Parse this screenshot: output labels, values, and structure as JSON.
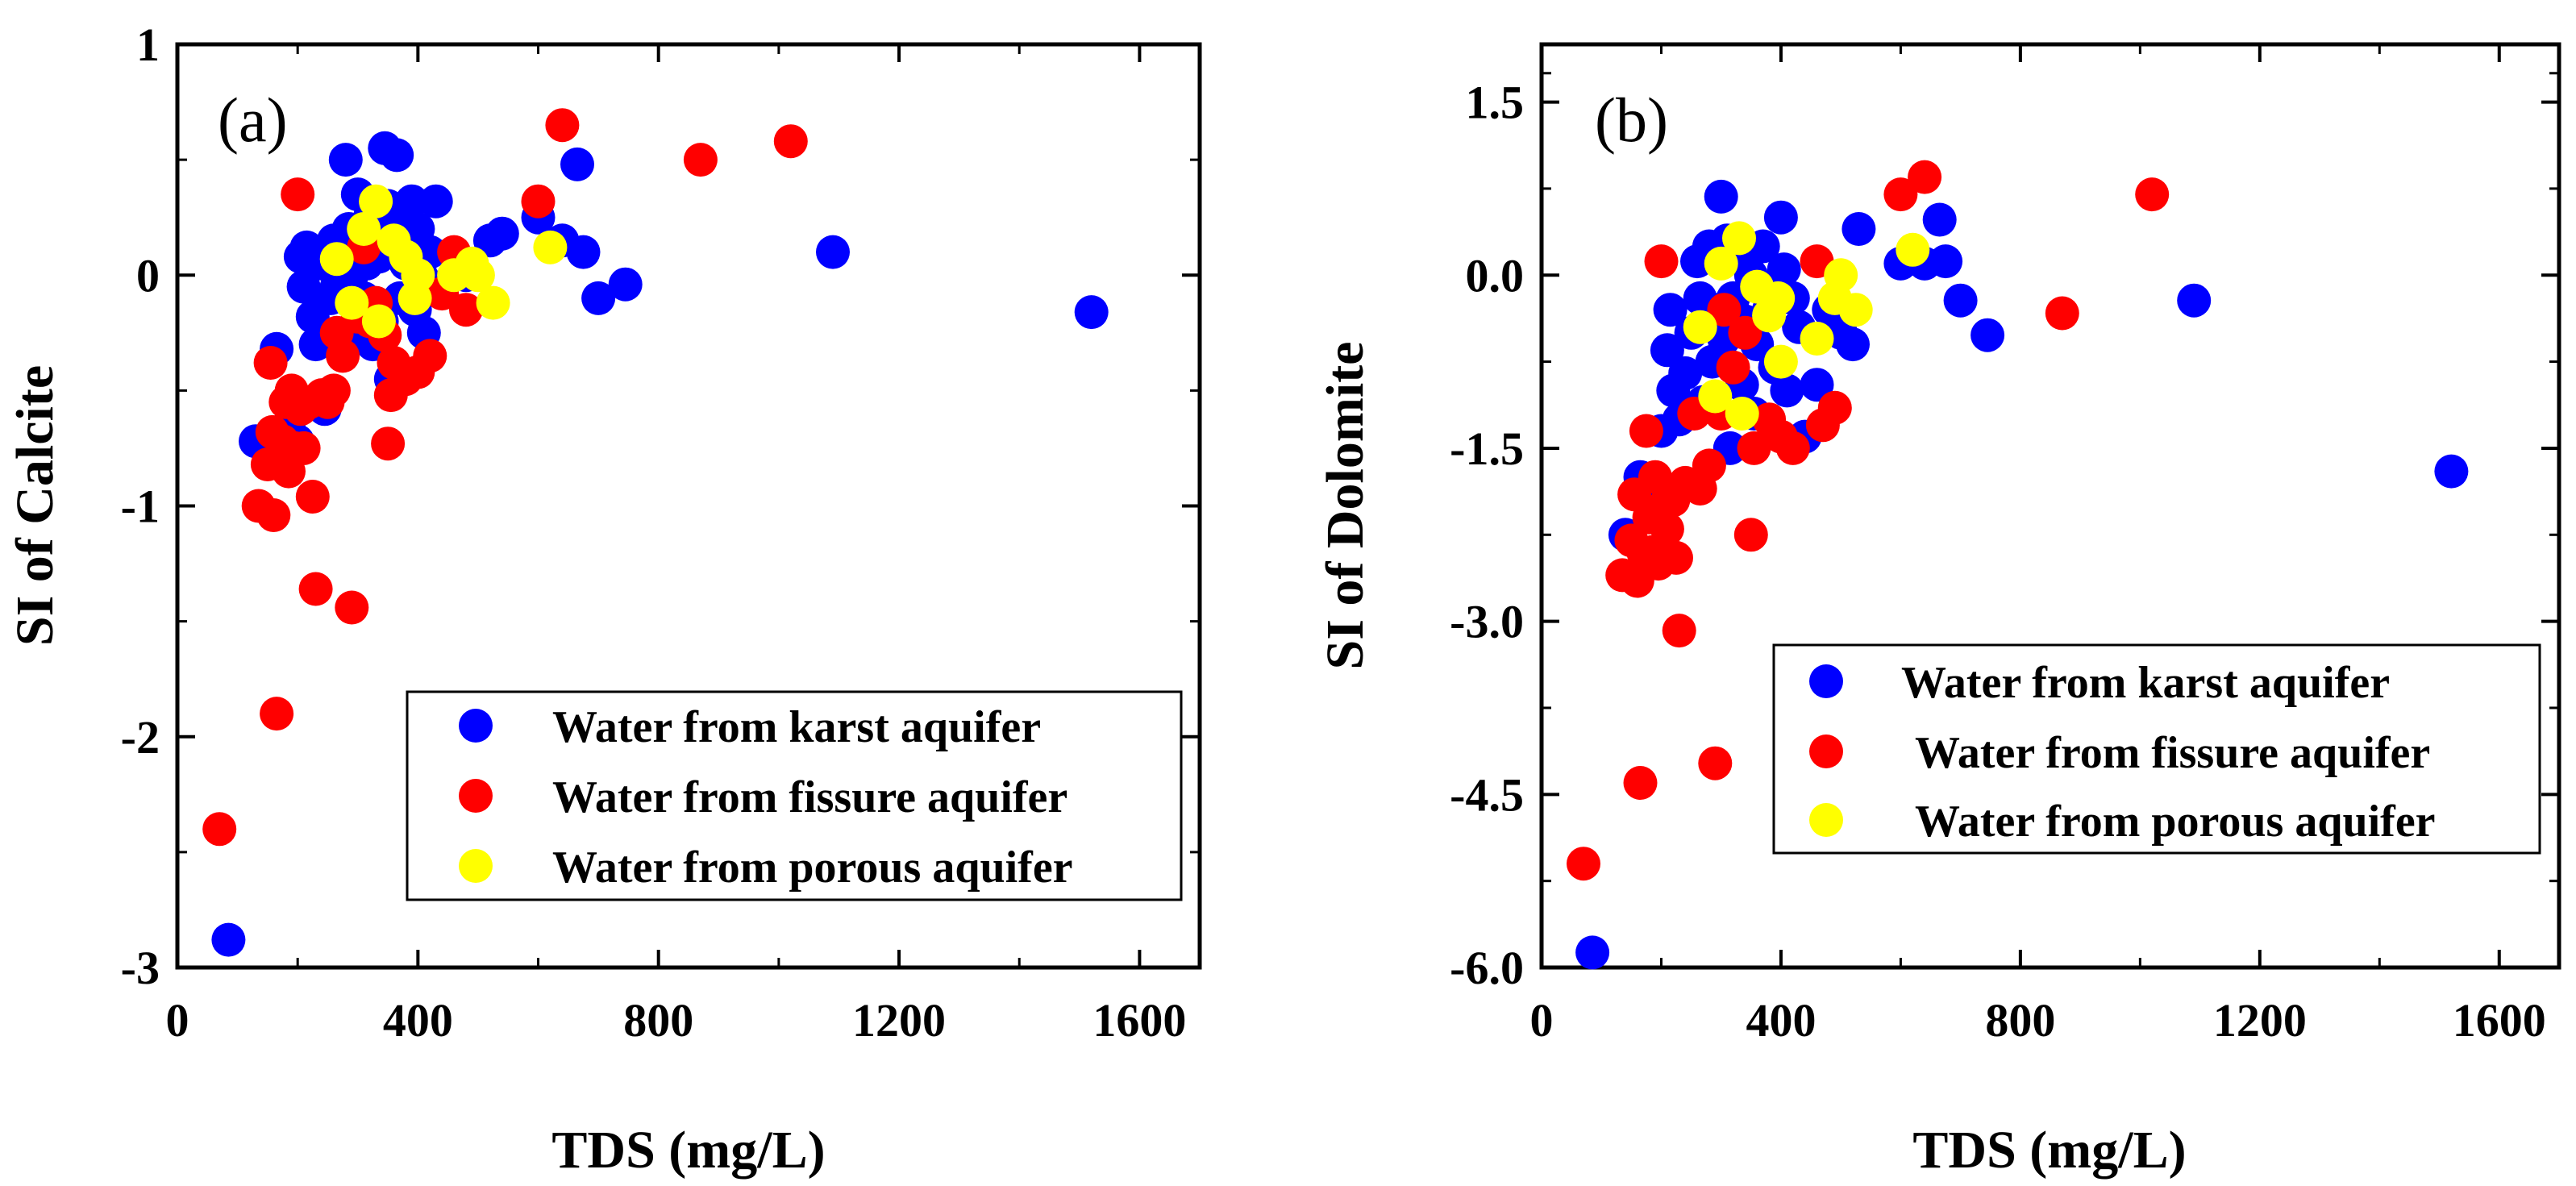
{
  "colors": {
    "karst": "#0000ff",
    "fissure": "#ff0000",
    "porous": "#ffff00",
    "axis": "#000000"
  },
  "chart_data": [
    {
      "id": "a",
      "type": "scatter",
      "panel_label": "(a)",
      "xlabel": "TDS (mg/L)",
      "ylabel": "SI of Calcite",
      "xlim": [
        0,
        1700
      ],
      "ylim": [
        -3,
        1
      ],
      "xticks": [
        0,
        400,
        800,
        1200,
        1600
      ],
      "xtick_labels": [
        "0",
        "400",
        "800",
        "1200",
        "1600"
      ],
      "yticks": [
        1,
        0,
        -1,
        -2,
        -3
      ],
      "ytick_labels": [
        "1",
        "0",
        "-1",
        "-2",
        "-3"
      ],
      "legend": [
        "Water from karst aquifer",
        "Water from fissure aquifer",
        "Water from porous aquifer"
      ],
      "series": [
        {
          "name": "Water from karst aquifer",
          "color_key": "karst",
          "points": [
            [
              85,
              -2.88
            ],
            [
              130,
              -0.72
            ],
            [
              165,
              -0.32
            ],
            [
              185,
              -0.65
            ],
            [
              200,
              -0.72
            ],
            [
              205,
              0.08
            ],
            [
              210,
              -0.05
            ],
            [
              215,
              0.12
            ],
            [
              225,
              -0.18
            ],
            [
              230,
              -0.3
            ],
            [
              240,
              0.05
            ],
            [
              245,
              -0.58
            ],
            [
              255,
              -0.1
            ],
            [
              260,
              0.15
            ],
            [
              265,
              -0.05
            ],
            [
              280,
              0.5
            ],
            [
              285,
              0.2
            ],
            [
              290,
              0.0
            ],
            [
              295,
              -0.25
            ],
            [
              300,
              0.35
            ],
            [
              305,
              0.1
            ],
            [
              310,
              -0.1
            ],
            [
              315,
              0.05
            ],
            [
              320,
              0.25
            ],
            [
              325,
              -0.3
            ],
            [
              330,
              0.18
            ],
            [
              335,
              0.08
            ],
            [
              340,
              -0.2
            ],
            [
              345,
              0.55
            ],
            [
              350,
              0.3
            ],
            [
              355,
              -0.45
            ],
            [
              360,
              0.12
            ],
            [
              365,
              0.52
            ],
            [
              370,
              -0.1
            ],
            [
              375,
              0.22
            ],
            [
              380,
              0.05
            ],
            [
              390,
              0.32
            ],
            [
              395,
              -0.15
            ],
            [
              400,
              0.2
            ],
            [
              405,
              0.0
            ],
            [
              410,
              -0.25
            ],
            [
              420,
              0.1
            ],
            [
              430,
              0.32
            ],
            [
              440,
              -0.05
            ],
            [
              460,
              0.08
            ],
            [
              480,
              0.0
            ],
            [
              520,
              0.15
            ],
            [
              540,
              0.18
            ],
            [
              600,
              0.25
            ],
            [
              640,
              0.15
            ],
            [
              665,
              0.48
            ],
            [
              675,
              0.1
            ],
            [
              700,
              -0.1
            ],
            [
              745,
              -0.04
            ],
            [
              1090,
              0.1
            ],
            [
              1520,
              -0.16
            ]
          ]
        },
        {
          "name": "Water from fissure aquifer",
          "color_key": "fissure",
          "points": [
            [
              70,
              -2.4
            ],
            [
              135,
              -1.0
            ],
            [
              150,
              -0.82
            ],
            [
              155,
              -0.38
            ],
            [
              158,
              -0.68
            ],
            [
              160,
              -1.04
            ],
            [
              165,
              -1.9
            ],
            [
              175,
              -0.72
            ],
            [
              180,
              -0.55
            ],
            [
              185,
              -0.85
            ],
            [
              190,
              -0.5
            ],
            [
              195,
              -0.75
            ],
            [
              200,
              0.35
            ],
            [
              205,
              -0.58
            ],
            [
              210,
              -0.75
            ],
            [
              220,
              -0.55
            ],
            [
              225,
              -0.96
            ],
            [
              230,
              -1.36
            ],
            [
              240,
              -0.52
            ],
            [
              250,
              -0.55
            ],
            [
              260,
              -0.5
            ],
            [
              265,
              -0.25
            ],
            [
              275,
              -0.35
            ],
            [
              290,
              -1.44
            ],
            [
              300,
              -0.18
            ],
            [
              310,
              0.12
            ],
            [
              320,
              -0.2
            ],
            [
              330,
              -0.12
            ],
            [
              345,
              -0.26
            ],
            [
              350,
              -0.73
            ],
            [
              355,
              -0.52
            ],
            [
              360,
              -0.38
            ],
            [
              380,
              -0.45
            ],
            [
              400,
              -0.42
            ],
            [
              420,
              -0.35
            ],
            [
              440,
              -0.08
            ],
            [
              460,
              0.1
            ],
            [
              480,
              -0.15
            ],
            [
              600,
              0.32
            ],
            [
              640,
              0.65
            ],
            [
              870,
              0.5
            ],
            [
              1020,
              0.58
            ]
          ]
        },
        {
          "name": "Water from porous aquifer",
          "color_key": "porous",
          "points": [
            [
              265,
              0.07
            ],
            [
              290,
              -0.12
            ],
            [
              310,
              0.2
            ],
            [
              330,
              0.32
            ],
            [
              335,
              -0.2
            ],
            [
              360,
              0.15
            ],
            [
              380,
              0.08
            ],
            [
              395,
              -0.1
            ],
            [
              400,
              0.0
            ],
            [
              460,
              0.0
            ],
            [
              490,
              0.05
            ],
            [
              500,
              0.0
            ],
            [
              525,
              -0.12
            ],
            [
              620,
              0.12
            ]
          ]
        }
      ]
    },
    {
      "id": "b",
      "type": "scatter",
      "panel_label": "(b)",
      "xlabel": "TDS (mg/L)",
      "ylabel": "SI of Dolomite",
      "xlim": [
        0,
        1700
      ],
      "ylim": [
        -6,
        2
      ],
      "xticks": [
        0,
        400,
        800,
        1200,
        1600
      ],
      "xtick_labels": [
        "0",
        "400",
        "800",
        "1200",
        "1600"
      ],
      "yticks": [
        1.5,
        0,
        -1.5,
        -3,
        -4.5,
        -6
      ],
      "ytick_labels": [
        "1.5",
        "0.0",
        "-1.5",
        "-3.0",
        "-4.5",
        "-6.0"
      ],
      "legend": [
        "Water from karst aquifer",
        "Water from fissure aquifer",
        "Water from porous aquifer"
      ],
      "series": [
        {
          "name": "Water from karst aquifer",
          "color_key": "karst",
          "points": [
            [
              85,
              -5.87
            ],
            [
              140,
              -2.25
            ],
            [
              165,
              -1.75
            ],
            [
              185,
              -1.85
            ],
            [
              200,
              -1.35
            ],
            [
              210,
              -0.65
            ],
            [
              215,
              -0.3
            ],
            [
              220,
              -1.0
            ],
            [
              230,
              -1.25
            ],
            [
              240,
              -0.85
            ],
            [
              250,
              -0.5
            ],
            [
              260,
              0.12
            ],
            [
              265,
              -0.2
            ],
            [
              270,
              -1.1
            ],
            [
              280,
              0.25
            ],
            [
              285,
              -0.75
            ],
            [
              290,
              -0.3
            ],
            [
              300,
              0.68
            ],
            [
              305,
              -0.55
            ],
            [
              310,
              0.3
            ],
            [
              315,
              -1.5
            ],
            [
              320,
              -0.2
            ],
            [
              330,
              0.2
            ],
            [
              335,
              -0.95
            ],
            [
              340,
              -0.4
            ],
            [
              350,
              0.0
            ],
            [
              355,
              -1.2
            ],
            [
              360,
              -0.6
            ],
            [
              370,
              0.25
            ],
            [
              380,
              -0.3
            ],
            [
              390,
              -0.8
            ],
            [
              400,
              0.5
            ],
            [
              405,
              0.05
            ],
            [
              410,
              -1.0
            ],
            [
              420,
              -0.2
            ],
            [
              430,
              -0.45
            ],
            [
              440,
              -1.4
            ],
            [
              460,
              -0.95
            ],
            [
              480,
              -0.3
            ],
            [
              500,
              -0.5
            ],
            [
              520,
              -0.6
            ],
            [
              530,
              0.4
            ],
            [
              600,
              0.1
            ],
            [
              640,
              0.1
            ],
            [
              665,
              0.48
            ],
            [
              675,
              0.12
            ],
            [
              700,
              -0.22
            ],
            [
              745,
              -0.52
            ],
            [
              1090,
              -0.22
            ],
            [
              1520,
              -1.7
            ]
          ]
        },
        {
          "name": "Water from fissure aquifer",
          "color_key": "fissure",
          "points": [
            [
              70,
              -5.1
            ],
            [
              135,
              -2.6
            ],
            [
              150,
              -2.3
            ],
            [
              155,
              -1.9
            ],
            [
              160,
              -2.65
            ],
            [
              165,
              -4.4
            ],
            [
              170,
              -2.4
            ],
            [
              175,
              -1.35
            ],
            [
              180,
              -2.1
            ],
            [
              185,
              -2.4
            ],
            [
              190,
              -1.75
            ],
            [
              195,
              -2.5
            ],
            [
              200,
              0.12
            ],
            [
              205,
              -2.0
            ],
            [
              210,
              -2.2
            ],
            [
              220,
              -1.95
            ],
            [
              225,
              -2.45
            ],
            [
              230,
              -3.08
            ],
            [
              240,
              -1.8
            ],
            [
              255,
              -1.2
            ],
            [
              265,
              -1.85
            ],
            [
              280,
              -1.65
            ],
            [
              290,
              -4.23
            ],
            [
              300,
              -1.2
            ],
            [
              305,
              -0.3
            ],
            [
              320,
              -0.8
            ],
            [
              340,
              -0.5
            ],
            [
              350,
              -2.25
            ],
            [
              355,
              -1.5
            ],
            [
              380,
              -1.25
            ],
            [
              400,
              -1.4
            ],
            [
              420,
              -1.5
            ],
            [
              460,
              0.12
            ],
            [
              470,
              -1.3
            ],
            [
              490,
              -1.15
            ],
            [
              600,
              0.7
            ],
            [
              640,
              0.85
            ],
            [
              870,
              -0.33
            ],
            [
              1020,
              0.7
            ]
          ]
        },
        {
          "name": "Water from porous aquifer",
          "color_key": "porous",
          "points": [
            [
              265,
              -0.45
            ],
            [
              290,
              -1.05
            ],
            [
              300,
              0.1
            ],
            [
              330,
              0.32
            ],
            [
              335,
              -1.2
            ],
            [
              360,
              -0.1
            ],
            [
              380,
              -0.35
            ],
            [
              395,
              -0.2
            ],
            [
              400,
              -0.75
            ],
            [
              460,
              -0.55
            ],
            [
              490,
              -0.2
            ],
            [
              500,
              0.0
            ],
            [
              525,
              -0.3
            ],
            [
              620,
              0.22
            ]
          ]
        }
      ]
    }
  ]
}
